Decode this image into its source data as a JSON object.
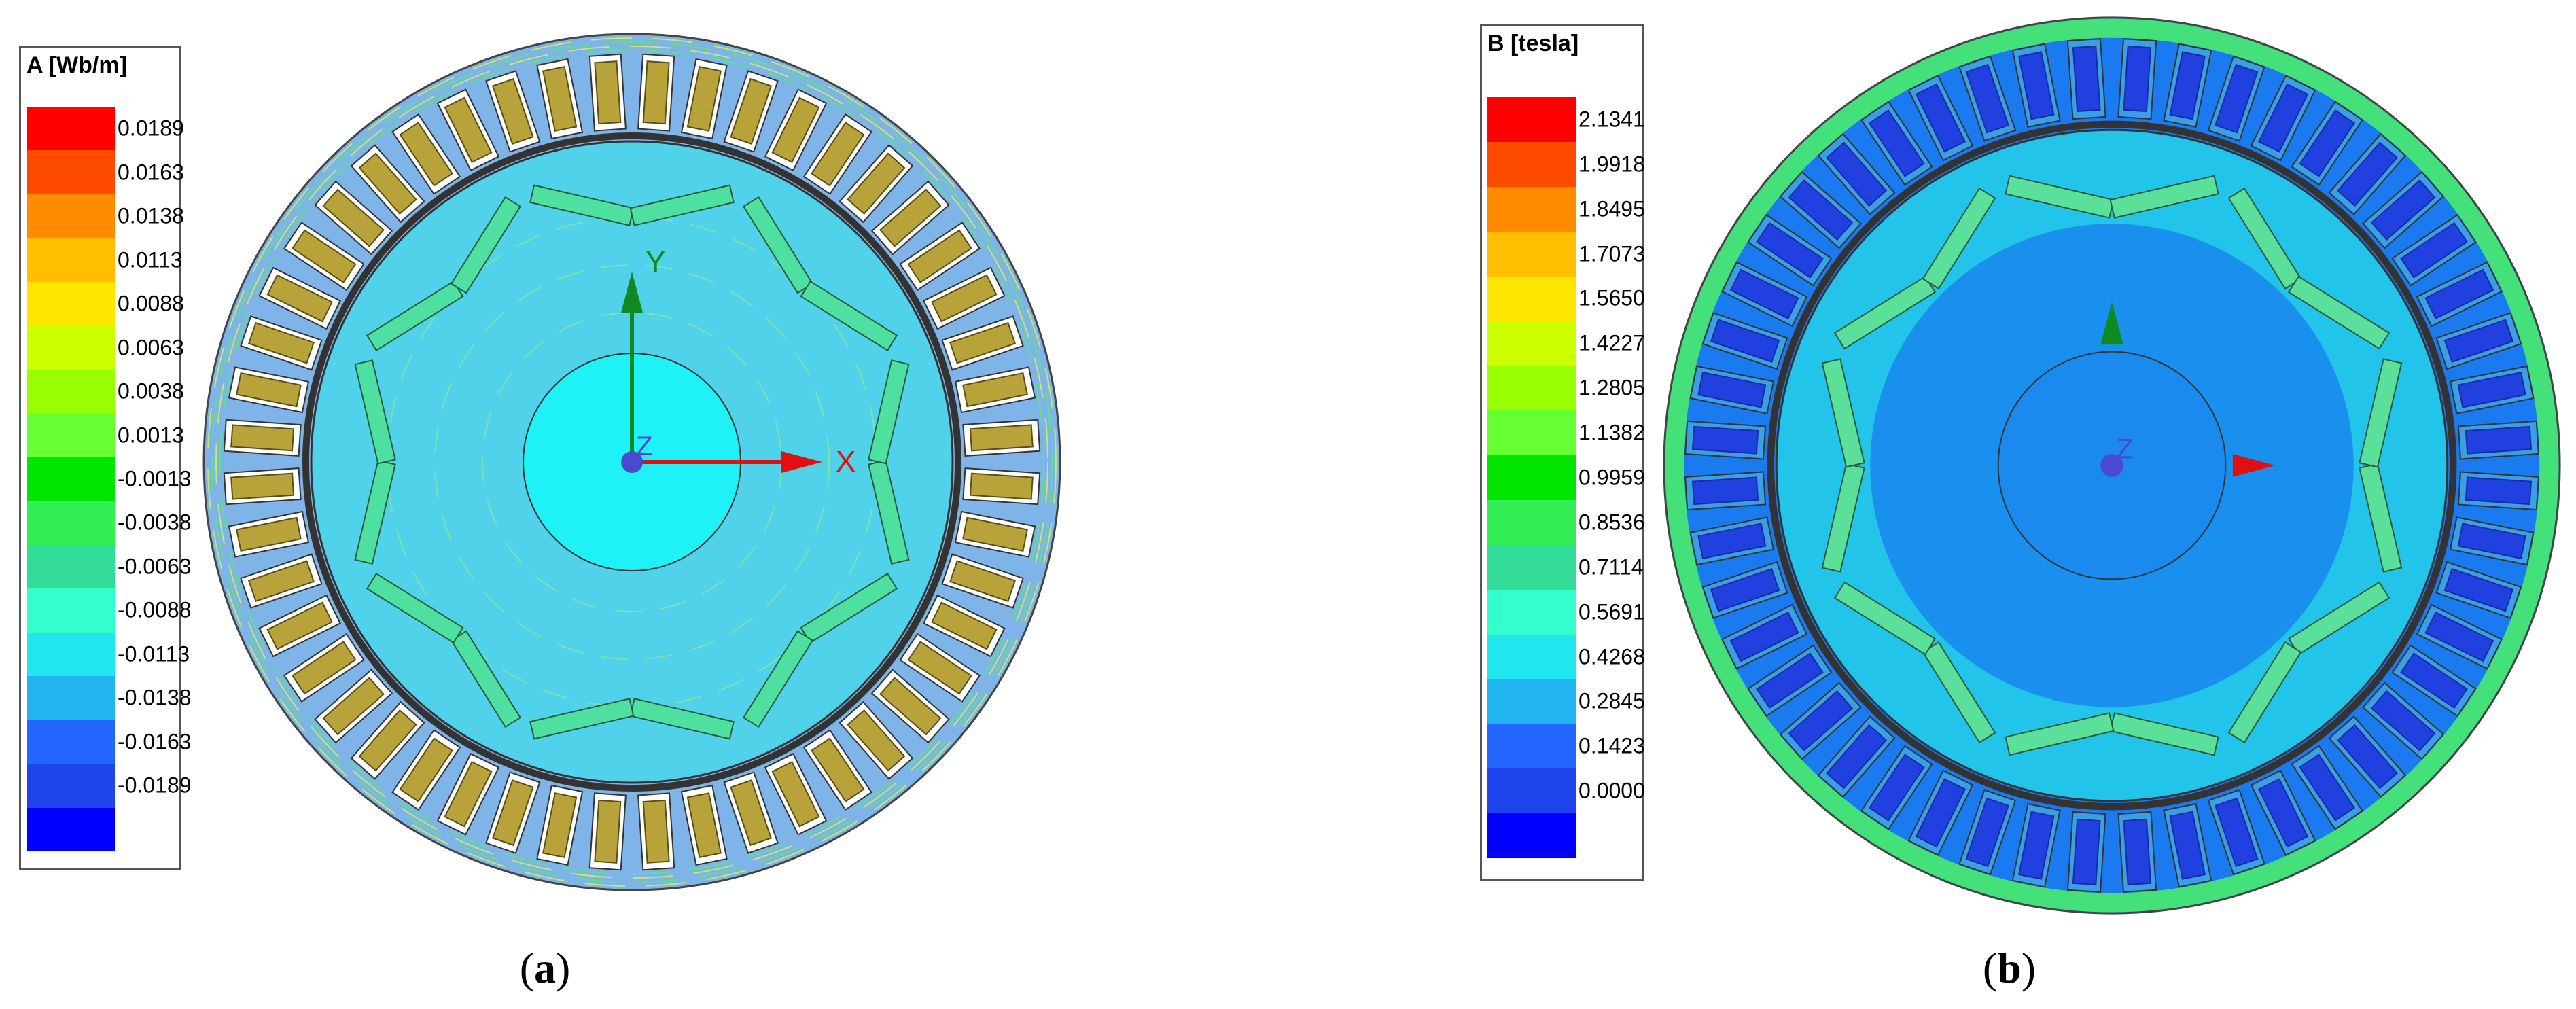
{
  "panels": [
    {
      "id": "a",
      "label": "a",
      "legend": {
        "title": "A [Wb/m]",
        "colors": [
          "#ff0000",
          "#ff4b00",
          "#ff8c00",
          "#ffbf00",
          "#ffe600",
          "#ccff00",
          "#99ff00",
          "#66ff33",
          "#00e600",
          "#33ee55",
          "#33dd99",
          "#33ffcc",
          "#22e6ee",
          "#22b4f0",
          "#2266ff",
          "#1e44ee",
          "#0000ff"
        ],
        "ticks": [
          "0.0189",
          "0.0163",
          "0.0138",
          "0.0113",
          "0.0088",
          "0.0063",
          "0.0038",
          "0.0013",
          "-0.0013",
          "-0.0038",
          "-0.0063",
          "-0.0088",
          "-0.0113",
          "-0.0138",
          "-0.0163",
          "-0.0189"
        ]
      },
      "axes": {
        "x": "X",
        "y": "Y",
        "z": "Z"
      }
    },
    {
      "id": "b",
      "label": "b",
      "legend": {
        "title": "B [tesla]",
        "colors": [
          "#ff0000",
          "#ff4b00",
          "#ff8c00",
          "#ffbf00",
          "#ffe600",
          "#ccff00",
          "#99ff00",
          "#66ff33",
          "#00e600",
          "#33ee55",
          "#33dd99",
          "#33ffcc",
          "#22e6ee",
          "#22b4f0",
          "#2266ff",
          "#1e44ee",
          "#0000ff"
        ],
        "ticks": [
          "2.1341",
          "1.9918",
          "1.8495",
          "1.7073",
          "1.5650",
          "1.4227",
          "1.2805",
          "1.1382",
          "0.9959",
          "0.8536",
          "0.7114",
          "0.5691",
          "0.4268",
          "0.2845",
          "0.1423",
          "0.0000"
        ]
      },
      "axes": {
        "x": "",
        "y": "",
        "z": "Z"
      }
    }
  ]
}
